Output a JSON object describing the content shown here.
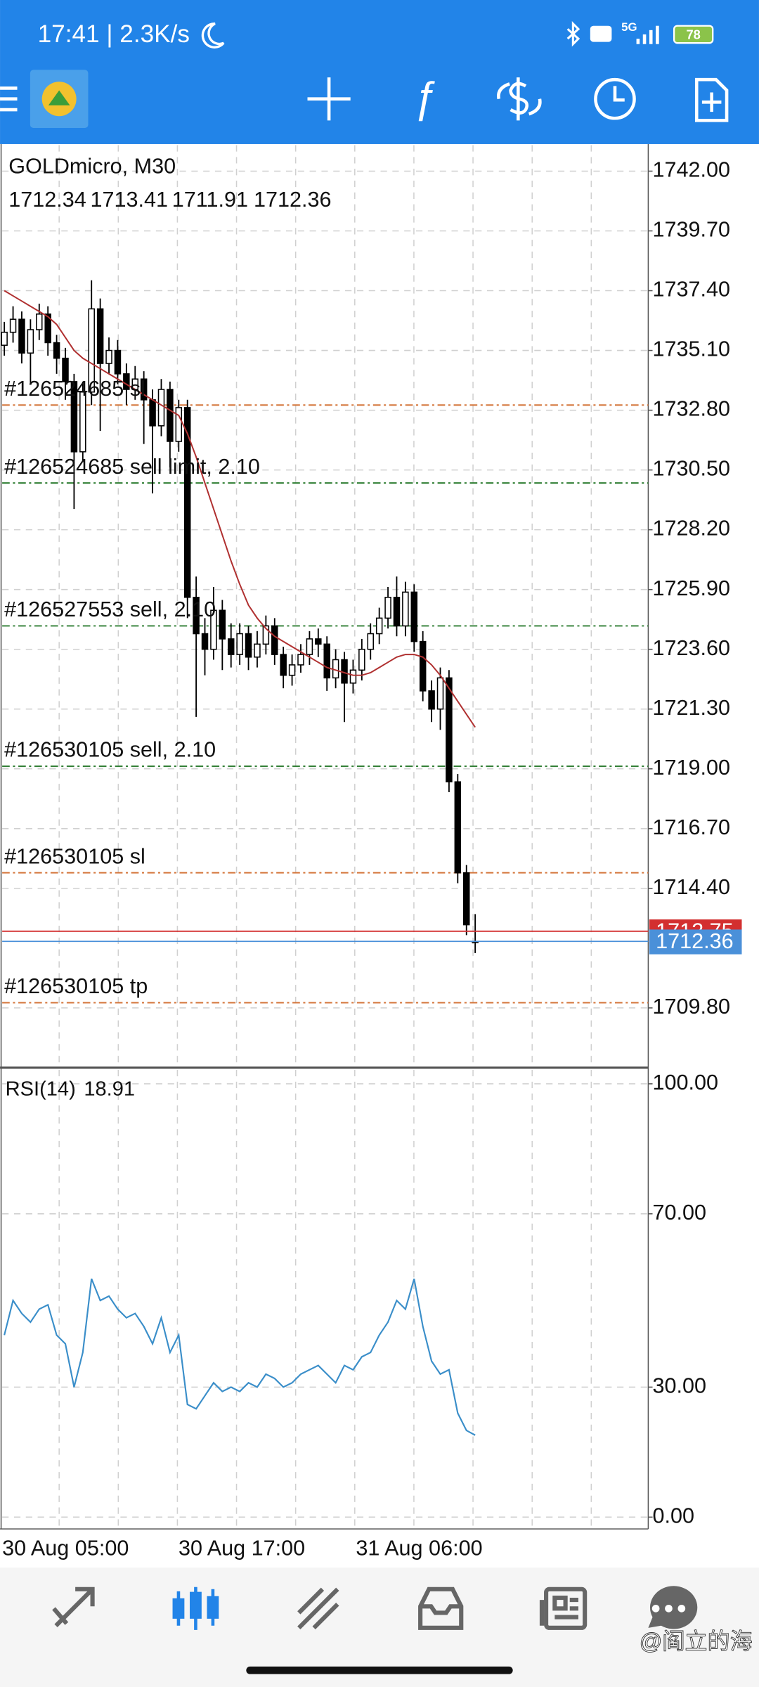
{
  "status_bar": {
    "time_speed": "17:41 | 2.3K/s",
    "network": "5G",
    "battery": "78"
  },
  "chart_data": [
    {
      "type": "candlestick",
      "symbol_timeframe": "GOLDmicro, M30",
      "open": [
        1735.3,
        1735.8,
        1736.3,
        1735.0,
        1735.9,
        1736.5,
        1735.4,
        1734.8,
        1733.9,
        1731.2,
        1733.5,
        1736.7,
        1734.6,
        1735.1,
        1734.2,
        1733.6,
        1734.0,
        1733.2,
        1732.2,
        1733.6,
        1731.6,
        1732.9,
        1725.6,
        1724.2,
        1723.6,
        1725.1,
        1724.0,
        1723.4,
        1724.2,
        1723.3,
        1723.8,
        1724.5,
        1723.4,
        1722.6,
        1723.0,
        1723.4,
        1724.0,
        1723.8,
        1722.5,
        1723.2,
        1722.3,
        1722.8,
        1723.6,
        1724.2,
        1724.8,
        1725.6,
        1724.5,
        1725.8,
        1723.9,
        1722.0,
        1721.3,
        1722.5,
        1718.5,
        1715.0,
        1712.34
      ],
      "high": [
        1736.2,
        1736.8,
        1736.6,
        1736.3,
        1736.9,
        1736.8,
        1735.7,
        1735.2,
        1734.2,
        1733.9,
        1737.8,
        1737.1,
        1735.6,
        1735.5,
        1734.6,
        1734.5,
        1734.3,
        1733.6,
        1734.0,
        1733.9,
        1733.2,
        1733.2,
        1726.4,
        1724.8,
        1726.0,
        1725.5,
        1724.6,
        1724.6,
        1724.5,
        1724.3,
        1724.9,
        1724.8,
        1723.7,
        1723.4,
        1723.8,
        1724.3,
        1724.4,
        1724.1,
        1723.6,
        1723.5,
        1723.2,
        1724.0,
        1724.6,
        1725.2,
        1726.0,
        1726.4,
        1726.2,
        1726.1,
        1724.3,
        1722.4,
        1722.9,
        1722.8,
        1718.8,
        1715.3,
        1713.41
      ],
      "low": [
        1734.9,
        1735.4,
        1734.6,
        1733.8,
        1735.5,
        1734.9,
        1734.2,
        1733.2,
        1729.0,
        1730.8,
        1733.0,
        1732.0,
        1734.2,
        1733.8,
        1733.0,
        1733.2,
        1731.5,
        1729.6,
        1731.8,
        1730.6,
        1731.2,
        1724.8,
        1721.0,
        1722.6,
        1723.2,
        1722.8,
        1722.9,
        1723.0,
        1722.8,
        1722.9,
        1723.4,
        1723.0,
        1722.1,
        1722.2,
        1722.7,
        1723.0,
        1723.3,
        1722.0,
        1722.1,
        1720.8,
        1721.9,
        1722.4,
        1723.2,
        1723.8,
        1724.4,
        1724.1,
        1724.1,
        1723.5,
        1721.6,
        1720.8,
        1720.5,
        1718.1,
        1714.6,
        1712.6,
        1711.91
      ],
      "close": [
        1735.8,
        1736.3,
        1735.0,
        1735.9,
        1736.5,
        1735.4,
        1734.8,
        1733.9,
        1731.2,
        1733.5,
        1736.7,
        1734.6,
        1735.1,
        1734.2,
        1733.6,
        1734.0,
        1733.2,
        1732.2,
        1733.6,
        1731.6,
        1732.9,
        1725.6,
        1724.2,
        1723.6,
        1725.1,
        1724.0,
        1723.4,
        1724.2,
        1723.3,
        1723.8,
        1724.5,
        1723.4,
        1722.6,
        1723.0,
        1723.4,
        1724.0,
        1723.8,
        1722.5,
        1723.2,
        1722.3,
        1722.8,
        1723.6,
        1724.2,
        1724.8,
        1725.6,
        1724.5,
        1725.8,
        1723.9,
        1722.0,
        1721.3,
        1722.5,
        1718.5,
        1715.0,
        1713.0,
        1712.36
      ],
      "ma": {
        "color": "#b03030",
        "values": [
          1737.4,
          1737.2,
          1737.0,
          1736.8,
          1736.6,
          1736.4,
          1736.1,
          1735.6,
          1735.1,
          1734.8,
          1734.6,
          1734.4,
          1734.2,
          1734.0,
          1733.8,
          1733.6,
          1733.4,
          1733.2,
          1733.0,
          1732.8,
          1732.6,
          1731.9,
          1731.0,
          1730.0,
          1729.0,
          1728.0,
          1727.0,
          1726.1,
          1725.3,
          1724.8,
          1724.4,
          1724.1,
          1723.9,
          1723.7,
          1723.5,
          1723.3,
          1723.1,
          1722.9,
          1722.8,
          1722.7,
          1722.6,
          1722.6,
          1722.7,
          1722.9,
          1723.1,
          1723.3,
          1723.4,
          1723.4,
          1723.3,
          1723.0,
          1722.6,
          1722.1,
          1721.6,
          1721.1,
          1720.6
        ]
      },
      "ylim": [
        1707.5,
        1743.0
      ],
      "yticks": [
        {
          "value": 1742,
          "label": "1742.00"
        },
        {
          "value": 1739.7,
          "label": "1739.70"
        },
        {
          "value": 1737.4,
          "label": "1737.40"
        },
        {
          "value": 1735.1,
          "label": "1735.10"
        },
        {
          "value": 1732.8,
          "label": "1732.80"
        },
        {
          "value": 1730.5,
          "label": "1730.50"
        },
        {
          "value": 1728.2,
          "label": "1728.20"
        },
        {
          "value": 1725.9,
          "label": "1725.90"
        },
        {
          "value": 1723.6,
          "label": "1723.60"
        },
        {
          "value": 1721.3,
          "label": "1721.30"
        },
        {
          "value": 1719,
          "label": "1719.00"
        },
        {
          "value": 1716.7,
          "label": "1716.70"
        },
        {
          "value": 1714.4,
          "label": "1714.40"
        },
        {
          "value": 1709.8,
          "label": "1709.80"
        }
      ],
      "grid": true,
      "ask": {
        "value": 1712.75,
        "color": "#d32f2f"
      },
      "bid": {
        "value": 1712.36,
        "color": "#4a90d9"
      },
      "orders": [
        {
          "label": "#126524685 sl",
          "price": 1733.0,
          "color": "#d4763b"
        },
        {
          "label": "#126524685 sell limit, 2.10",
          "price": 1730.0,
          "color": "#2e7d32"
        },
        {
          "label": "#126527553 sell, 2.10",
          "price": 1724.5,
          "color": "#2e7d32"
        },
        {
          "label": "#126530105 sell, 2.10",
          "price": 1719.1,
          "color": "#2e7d32"
        },
        {
          "label": "#126530105 sl",
          "price": 1715.0,
          "color": "#d4763b"
        },
        {
          "label": "#126530105 tp",
          "price": 1710.0,
          "color": "#d4763b"
        }
      ],
      "x_labels": [
        "30 Aug 05:00",
        "30 Aug 17:00",
        "31 Aug 06:00"
      ]
    },
    {
      "type": "line",
      "label": "RSI(14)",
      "color": "#3a8ec9",
      "values": [
        42,
        50,
        47,
        45,
        48,
        49,
        42,
        40,
        30,
        38,
        55,
        50,
        51,
        48,
        46,
        47,
        44,
        40,
        46,
        38,
        42,
        26,
        25,
        28,
        31,
        29,
        30,
        29,
        31,
        30,
        33,
        32,
        30,
        31,
        33,
        34,
        35,
        33,
        31,
        35,
        34,
        37,
        38,
        42,
        45,
        50,
        48,
        55,
        44,
        36,
        33,
        34,
        24,
        20,
        18.91
      ],
      "ylim": [
        0,
        100
      ],
      "yticks": [
        {
          "value": 100,
          "label": "100.00"
        },
        {
          "value": 70,
          "label": "70.00"
        },
        {
          "value": 30,
          "label": "30.00"
        },
        {
          "value": 0,
          "label": "0.00"
        }
      ],
      "grid": true
    }
  ],
  "watermark": "@阎立的海"
}
